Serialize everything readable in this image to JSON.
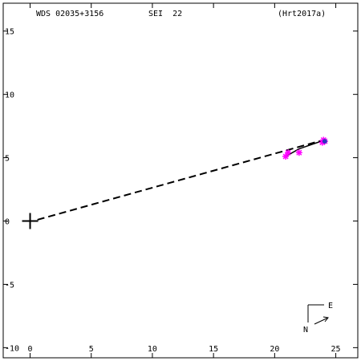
{
  "header": {
    "wds_id": "WDS 02035+3156",
    "discoverer": "SEI  22",
    "reference": "(Hrt2017a)"
  },
  "orientation": {
    "east_label": "E",
    "north_label": "N"
  },
  "colors": {
    "points": "#ff00ff",
    "arrow": "#3030c0",
    "axes": "#000000"
  },
  "chart_data": {
    "type": "scatter",
    "title": "",
    "xlabel": "",
    "ylabel": "",
    "xlim": [
      -2.2,
      26.8
    ],
    "ylim": [
      -10.8,
      17.2
    ],
    "x_ticks": [
      0,
      5,
      10,
      15,
      20,
      25
    ],
    "y_ticks": [
      15,
      10,
      5,
      0,
      -5,
      -10
    ],
    "x_tick_labels": [
      "0",
      "5",
      "10",
      "15",
      "20",
      "25"
    ],
    "y_tick_labels": [
      "15",
      "10",
      "5",
      "0",
      "-5",
      "-10"
    ],
    "primary": {
      "x": 0,
      "y": 0
    },
    "series": [
      {
        "style": "asterisk",
        "x": [
          20.9,
          21.1,
          22.0,
          23.9,
          24.0,
          24.1
        ],
        "y": [
          5.1,
          5.4,
          5.4,
          6.2,
          6.4,
          6.3
        ]
      }
    ],
    "line_of_motion": {
      "x": [
        0.6,
        24.0
      ],
      "y": [
        0.1,
        6.4
      ]
    },
    "path_segments": [
      {
        "x": [
          20.9,
          22.0
        ],
        "y": [
          5.1,
          5.7
        ]
      },
      {
        "x": [
          22.0,
          24.1
        ],
        "y": [
          5.7,
          6.4
        ]
      }
    ]
  }
}
